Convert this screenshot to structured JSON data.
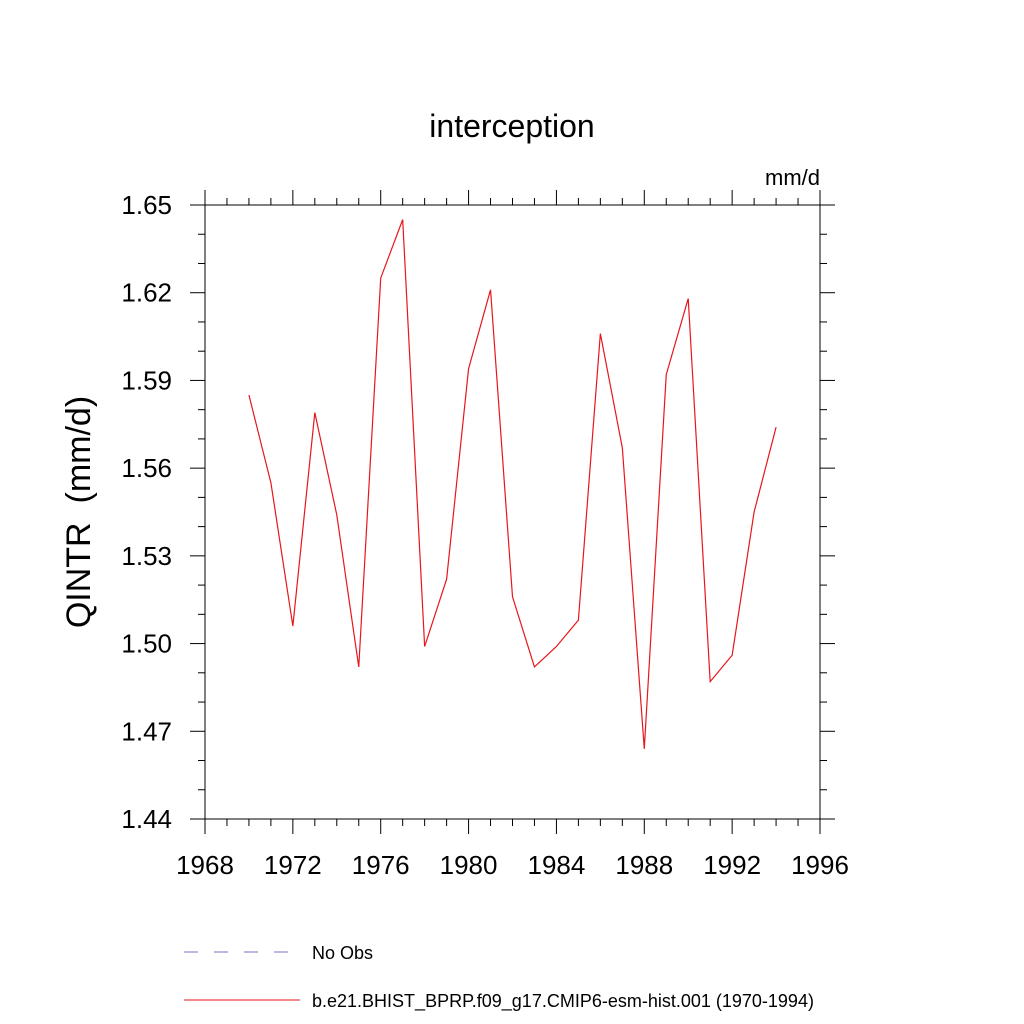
{
  "chart_data": {
    "type": "line",
    "title": "interception",
    "units": "mm/d",
    "ylabel": "QINTR  (mm/d)",
    "xlabel": "",
    "xlim": [
      1968,
      1996
    ],
    "ylim": [
      1.44,
      1.65
    ],
    "xticks": [
      1968,
      1972,
      1976,
      1980,
      1984,
      1988,
      1992,
      1996
    ],
    "xtick_labels": [
      "1968",
      "1972",
      "1976",
      "1980",
      "1984",
      "1988",
      "1992",
      "1996"
    ],
    "yticks": [
      1.44,
      1.47,
      1.5,
      1.53,
      1.56,
      1.59,
      1.62,
      1.65
    ],
    "ytick_labels": [
      "1.44",
      "1.47",
      "1.50",
      "1.53",
      "1.56",
      "1.59",
      "1.62",
      "1.65"
    ],
    "grid": false,
    "legend_position": "bottom",
    "series": [
      {
        "name": "b.e21.BHIST_BPRP.f09_g17.CMIP6-esm-hist.001 (1970-1994)",
        "color": "#e8161b",
        "style": "solid",
        "x": [
          1970,
          1971,
          1972,
          1973,
          1974,
          1975,
          1976,
          1977,
          1978,
          1979,
          1980,
          1981,
          1982,
          1983,
          1984,
          1985,
          1986,
          1987,
          1988,
          1989,
          1990,
          1991,
          1992,
          1993,
          1994
        ],
        "values": [
          1.585,
          1.555,
          1.506,
          1.579,
          1.544,
          1.492,
          1.625,
          1.645,
          1.499,
          1.522,
          1.594,
          1.621,
          1.516,
          1.492,
          1.499,
          1.508,
          1.606,
          1.567,
          1.464,
          1.592,
          1.618,
          1.487,
          1.496,
          1.545,
          1.574
        ]
      },
      {
        "name": "No Obs",
        "color": "#7a6fc4",
        "style": "dashed",
        "x": [],
        "values": []
      }
    ]
  }
}
